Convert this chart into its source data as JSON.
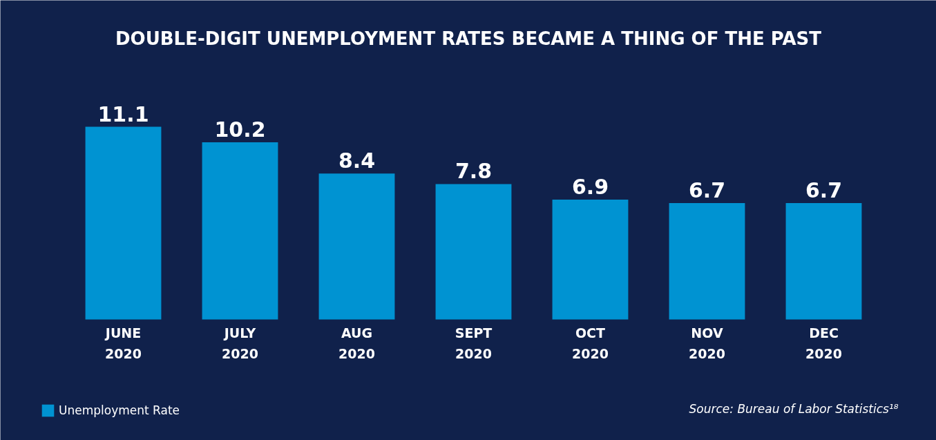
{
  "chart_data": {
    "type": "bar",
    "title": "DOUBLE-DIGIT UNEMPLOYMENT RATES BECAME A THING OF THE PAST",
    "categories": [
      "JUNE 2020",
      "JULY 2020",
      "AUG 2020",
      "SEPT 2020",
      "OCT 2020",
      "NOV 2020",
      "DEC 2020"
    ],
    "series": [
      {
        "name": "Unemployment Rate",
        "color": "#0093d2",
        "values": [
          11.1,
          10.2,
          8.4,
          7.8,
          6.9,
          6.7,
          6.7
        ]
      }
    ],
    "data_labels": true,
    "legend": "bottom left",
    "grid": false,
    "annotations": [
      "Source: Bureau of Labor Statistics¹⁸"
    ]
  }
}
